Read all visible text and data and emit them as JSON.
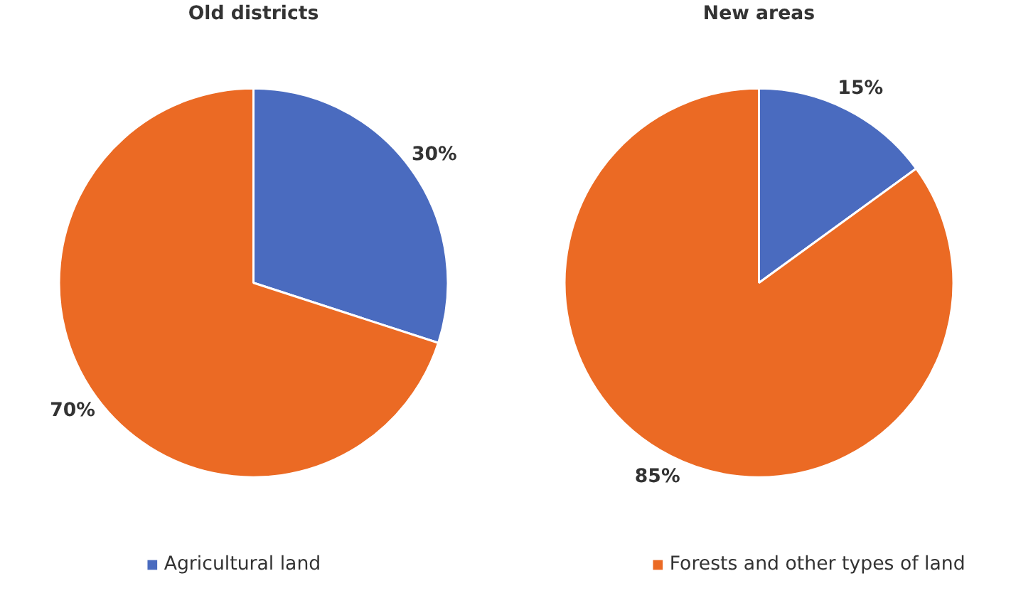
{
  "chart_data": [
    {
      "type": "pie",
      "title": "Old districts",
      "categories": [
        "Agricultural land",
        "Forests and other types of land"
      ],
      "values": [
        30,
        70
      ],
      "value_labels": [
        "30%",
        "70%"
      ],
      "colors": [
        "#4a6bbf",
        "#eb6a24"
      ],
      "legend": "bottom"
    },
    {
      "type": "pie",
      "title": "New areas",
      "categories": [
        null,
        null
      ],
      "values": [
        15,
        85
      ],
      "value_labels": [
        "15%",
        "85%"
      ],
      "colors": [
        "#4a6bbf",
        "#eb6a24"
      ]
    }
  ]
}
